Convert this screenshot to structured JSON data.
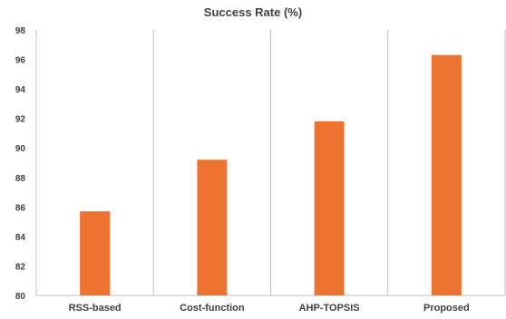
{
  "chart_data": {
    "type": "bar",
    "title": "Success Rate (%)",
    "xlabel": "",
    "ylabel": "",
    "categories": [
      "RSS-based",
      "Cost-function",
      "AHP-TOPSIS",
      "Proposed"
    ],
    "values": [
      85.7,
      89.2,
      91.8,
      96.3
    ],
    "ylim": [
      80,
      98
    ],
    "yticks": [
      "80",
      "82",
      "84",
      "86",
      "88",
      "90",
      "92",
      "94",
      "96",
      "98"
    ],
    "grid": "vertical category separators",
    "legend": "none",
    "bar_color": "#ED7430",
    "axis_color": "#BFBFBF",
    "text_color": "#404040"
  }
}
